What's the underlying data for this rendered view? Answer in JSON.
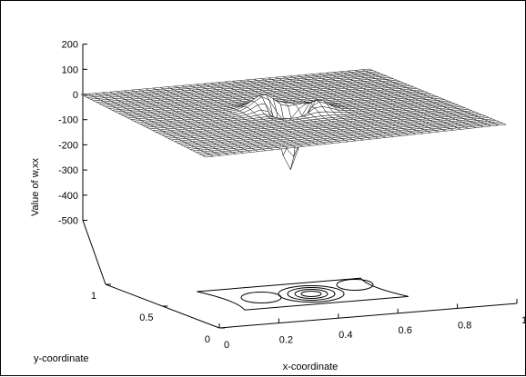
{
  "chart_data": {
    "type": "surface",
    "title": "",
    "xlabel": "x-coordinate",
    "ylabel": "y-coordinate",
    "zlabel": "Value of w,xx",
    "xlim": [
      0,
      1
    ],
    "ylim": [
      0,
      1
    ],
    "zlim": [
      -500,
      200
    ],
    "x_ticks": [
      0,
      0.2,
      0.4,
      0.6,
      0.8,
      1
    ],
    "x_tick_labels": [
      "0",
      "0.2",
      "0.4",
      "0.6",
      "0.8",
      "1"
    ],
    "y_ticks": [
      0,
      0.5,
      1
    ],
    "y_tick_labels": [
      "0",
      "0.5",
      "1"
    ],
    "z_ticks": [
      200,
      100,
      0,
      -100,
      -200,
      -300,
      -400,
      -500
    ],
    "z_tick_labels": [
      "200",
      "100",
      "0",
      "-100",
      "-200",
      "-300",
      "-400",
      "-500"
    ],
    "grid": false,
    "contour_projection": true,
    "surface": {
      "base_value": 0,
      "features": [
        {
          "kind": "peak",
          "x": 0.45,
          "y": 0.55,
          "value": 75
        },
        {
          "kind": "peak",
          "x": 0.55,
          "y": 0.48,
          "value": 75
        },
        {
          "kind": "trough",
          "x": 0.5,
          "y": 0.5,
          "value": -290
        }
      ]
    },
    "colors": {
      "surface_fill": "#ffffff",
      "mesh": "#000000",
      "axes": "#000000"
    }
  }
}
